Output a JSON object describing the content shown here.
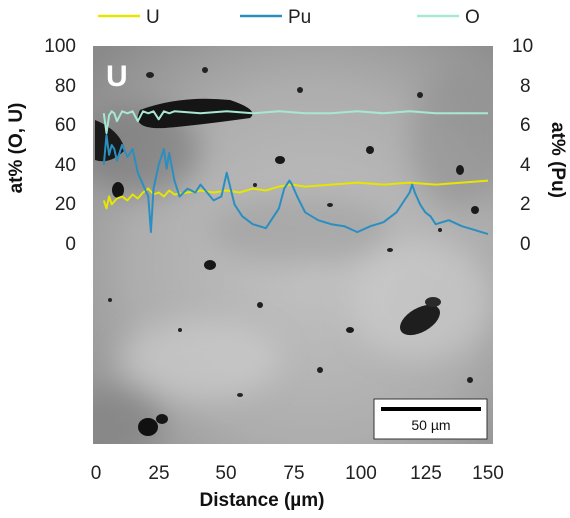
{
  "chart_data": {
    "type": "line",
    "background": "grayscale SEM micrograph",
    "panel_label": "U",
    "scale_bar": "50 µm",
    "xlabel": "Distance (µm)",
    "ylabel_left": "at% (O, U)",
    "ylabel_right": "at% (Pu)",
    "xlim": [
      0,
      150
    ],
    "ylim_left": [
      -100,
      100
    ],
    "ylim_right": [
      -10,
      10
    ],
    "x_ticks": [
      "0",
      "25",
      "50",
      "75",
      "100",
      "125",
      "150"
    ],
    "y_ticks_left": [
      "100",
      "80",
      "60",
      "40",
      "20",
      "0"
    ],
    "y_ticks_right": [
      "10",
      "8",
      "6",
      "4",
      "2",
      "0"
    ],
    "legend": {
      "placement": "top",
      "entries": [
        "U",
        "Pu",
        "O"
      ]
    },
    "grid": false,
    "series": [
      {
        "name": "U",
        "axis": "left",
        "color": "#e6e600",
        "x": [
          3,
          4,
          5,
          6,
          8,
          10,
          12,
          14,
          16,
          18,
          20,
          22,
          24,
          26,
          28,
          30,
          35,
          40,
          45,
          50,
          55,
          60,
          65,
          70,
          75,
          80,
          90,
          100,
          110,
          120,
          130,
          140,
          150
        ],
        "y": [
          22,
          18,
          24,
          20,
          23,
          24,
          22,
          25,
          23,
          26,
          28,
          25,
          26,
          24,
          27,
          25,
          26,
          27,
          26,
          27,
          26,
          28,
          27,
          29,
          30,
          29,
          30,
          31,
          30,
          31,
          30,
          31,
          32
        ]
      },
      {
        "name": "Pu",
        "axis": "right",
        "color": "#2a8fc0",
        "x": [
          3,
          4,
          5,
          6,
          7,
          8,
          10,
          12,
          14,
          16,
          18,
          20,
          21,
          22,
          24,
          26,
          27,
          28,
          30,
          32,
          35,
          38,
          40,
          45,
          48,
          50,
          53,
          56,
          60,
          65,
          70,
          72,
          74,
          75,
          77,
          80,
          85,
          90,
          95,
          100,
          105,
          110,
          115,
          120,
          121,
          122,
          124,
          126,
          128,
          130,
          135,
          140,
          145,
          150
        ],
        "y": [
          4.0,
          5.5,
          4.5,
          5.0,
          4.8,
          4.2,
          5.0,
          4.4,
          4.8,
          3.6,
          3.0,
          2.4,
          0.6,
          2.8,
          4.0,
          4.8,
          3.8,
          4.6,
          3.2,
          2.4,
          2.8,
          2.6,
          3.0,
          2.2,
          2.4,
          3.6,
          2.0,
          1.4,
          1.0,
          0.8,
          1.8,
          2.8,
          3.2,
          3.0,
          2.4,
          1.6,
          1.2,
          1.0,
          0.9,
          0.6,
          0.9,
          1.1,
          1.6,
          2.6,
          3.0,
          2.6,
          2.0,
          1.6,
          1.4,
          1.0,
          1.2,
          0.9,
          0.7,
          0.5
        ]
      },
      {
        "name": "O",
        "axis": "left",
        "color": "#a8e8d2",
        "x": [
          3,
          4,
          5,
          6,
          7,
          8,
          10,
          12,
          14,
          16,
          18,
          20,
          22,
          24,
          26,
          28,
          30,
          40,
          50,
          60,
          70,
          80,
          90,
          100,
          110,
          120,
          130,
          140,
          150
        ],
        "y": [
          66,
          56,
          65,
          67,
          66,
          62,
          67,
          66,
          67,
          62,
          67,
          66,
          67,
          63,
          67,
          66,
          67,
          66,
          67,
          66,
          67,
          66,
          66,
          67,
          66,
          67,
          66,
          66,
          66
        ]
      }
    ]
  }
}
